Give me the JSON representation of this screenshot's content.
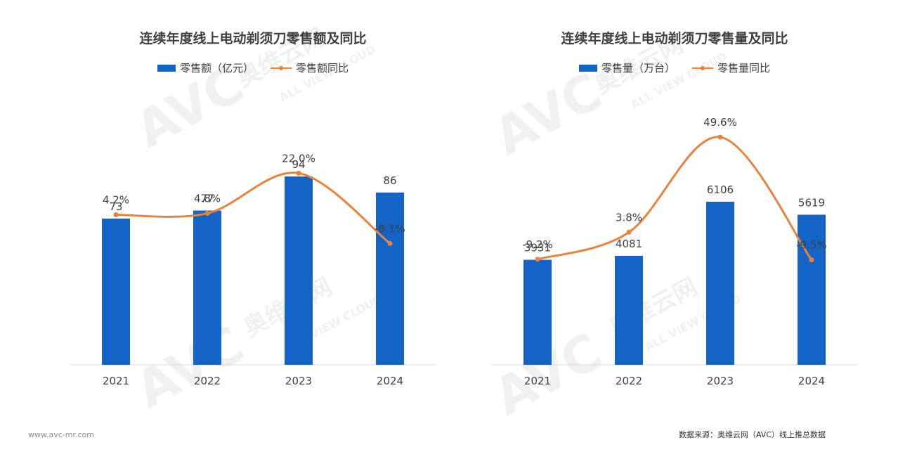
{
  "colors": {
    "bar": "#1464C8",
    "line": "#E8823C",
    "axis": "#d9d9d9",
    "text": "#404040"
  },
  "chart_data": [
    {
      "type": "bar",
      "title": "连续年度线上电动剃须刀零售额及同比",
      "categories": [
        "2021",
        "2022",
        "2023",
        "2024"
      ],
      "series": [
        {
          "name": "零售额（亿元）",
          "type": "bar",
          "values": [
            73,
            77,
            94,
            86
          ],
          "labels": [
            "73",
            "77",
            "94",
            "86"
          ]
        },
        {
          "name": "零售额同比",
          "type": "line",
          "values": [
            4.2,
            4.8,
            22.0,
            -8.1
          ],
          "labels": [
            "4.2%",
            "4.8%",
            "22.0%",
            "-8.1%"
          ]
        }
      ],
      "ylim_bar": [
        0,
        140
      ],
      "ylim_line": [
        -60,
        60
      ],
      "legend": "top-center",
      "grid": false
    },
    {
      "type": "bar",
      "title": "连续年度线上电动剃须刀零售量及同比",
      "categories": [
        "2021",
        "2022",
        "2023",
        "2024"
      ],
      "series": [
        {
          "name": "零售量（万台）",
          "type": "bar",
          "values": [
            3931,
            4081,
            6106,
            5619
          ],
          "labels": [
            "3931",
            "4081",
            "6106",
            "5619"
          ]
        },
        {
          "name": "零售量同比",
          "type": "line",
          "values": [
            -9.2,
            3.8,
            49.6,
            -9.5
          ],
          "labels": [
            "-9.2%",
            "3.8%",
            "49.6%",
            "-9.5%"
          ]
        }
      ],
      "ylim_bar": [
        0,
        10500
      ],
      "ylim_line": [
        -60,
        75
      ],
      "legend": "top-center",
      "grid": false
    }
  ],
  "footer": {
    "website": "www.avc-mr.com",
    "source": "数据来源：奥维云网（AVC）线上推总数据"
  },
  "watermark": {
    "logo": "AVC",
    "cn": "奥维云网",
    "en": "ALL VIEW CLOUD"
  }
}
